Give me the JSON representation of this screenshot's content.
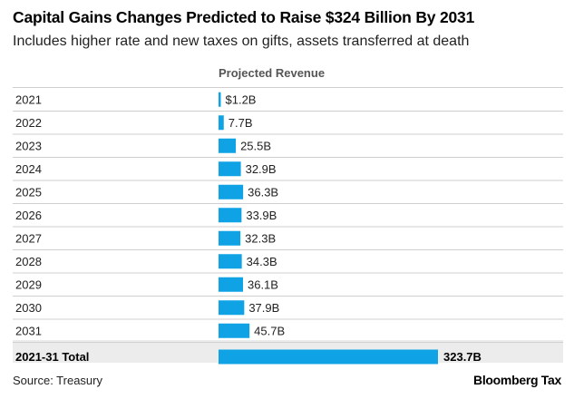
{
  "title": "Capital Gains Changes Predicted to Raise $324 Billion By 2031",
  "subtitle": "Includes higher rate and new taxes on gifts, assets transferred at death",
  "source": "Source: Treasury",
  "brand": "Bloomberg Tax",
  "colors": {
    "bar": "#0fa3e6",
    "total_band": "#ececec",
    "rule": "#cfcfcf"
  },
  "chart_data": {
    "type": "bar",
    "orientation": "horizontal",
    "column_header": "Projected Revenue",
    "unit": "billion USD",
    "categories": [
      "2021",
      "2022",
      "2023",
      "2024",
      "2025",
      "2026",
      "2027",
      "2028",
      "2029",
      "2030",
      "2031"
    ],
    "values": [
      1.2,
      7.7,
      25.5,
      32.9,
      36.3,
      33.9,
      32.3,
      34.3,
      36.1,
      37.9,
      45.7
    ],
    "labels": [
      "$1.2B",
      "7.7B",
      "25.5B",
      "32.9B",
      "36.3B",
      "33.9B",
      "32.3B",
      "34.3B",
      "36.1B",
      "37.9B",
      "45.7B"
    ],
    "total": {
      "category": "2021-31 Total",
      "value": 323.7,
      "label": "323.7B"
    }
  }
}
